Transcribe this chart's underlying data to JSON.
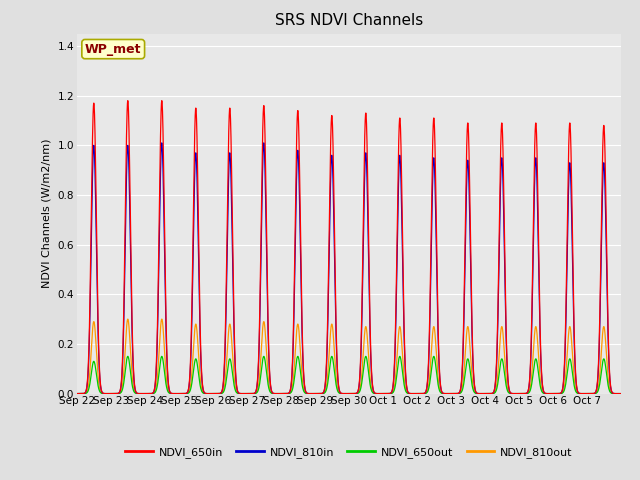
{
  "title": "SRS NDVI Channels",
  "ylabel": "NDVI Channels (W/m2/nm)",
  "background_color": "#e0e0e0",
  "plot_bg_color": "#e8e8e8",
  "annotation_text": "WP_met",
  "annotation_color": "#8B0000",
  "annotation_bg": "#ffffcc",
  "ylim": [
    0.0,
    1.45
  ],
  "yticks": [
    0.0,
    0.2,
    0.4,
    0.6,
    0.8,
    1.0,
    1.2,
    1.4
  ],
  "num_days": 16,
  "peak_times_hour": 12.0,
  "peak_sigma_hours": 1.8,
  "channels": {
    "NDVI_650in": {
      "color": "#ff0000",
      "peaks": [
        1.17,
        1.18,
        1.18,
        1.15,
        1.15,
        1.16,
        1.14,
        1.12,
        1.13,
        1.11,
        1.11,
        1.09,
        1.09,
        1.09,
        1.09,
        1.08
      ]
    },
    "NDVI_810in": {
      "color": "#0000cc",
      "peaks": [
        1.0,
        1.0,
        1.01,
        0.97,
        0.97,
        1.01,
        0.98,
        0.96,
        0.97,
        0.96,
        0.95,
        0.94,
        0.95,
        0.95,
        0.93,
        0.93
      ]
    },
    "NDVI_650out": {
      "color": "#00cc00",
      "peaks": [
        0.13,
        0.15,
        0.15,
        0.14,
        0.14,
        0.15,
        0.15,
        0.15,
        0.15,
        0.15,
        0.15,
        0.14,
        0.14,
        0.14,
        0.14,
        0.14
      ]
    },
    "NDVI_810out": {
      "color": "#ff9900",
      "peaks": [
        0.29,
        0.3,
        0.3,
        0.28,
        0.28,
        0.29,
        0.28,
        0.28,
        0.27,
        0.27,
        0.27,
        0.27,
        0.27,
        0.27,
        0.27,
        0.27
      ]
    }
  },
  "legend_labels": [
    "NDVI_650in",
    "NDVI_810in",
    "NDVI_650out",
    "NDVI_810out"
  ],
  "legend_colors": [
    "#ff0000",
    "#0000cc",
    "#00cc00",
    "#ff9900"
  ],
  "xtick_labels": [
    "Sep 22",
    "Sep 23",
    "Sep 24",
    "Sep 25",
    "Sep 26",
    "Sep 27",
    "Sep 28",
    "Sep 29",
    "Sep 30",
    "Oct 1",
    "Oct 2",
    "Oct 3",
    "Oct 4",
    "Oct 5",
    "Oct 6",
    "Oct 7"
  ],
  "grid_color": "#ffffff",
  "title_fontsize": 11,
  "label_fontsize": 8,
  "tick_fontsize": 7.5,
  "legend_fontsize": 8,
  "annotation_fontsize": 9,
  "linewidth": 0.9
}
